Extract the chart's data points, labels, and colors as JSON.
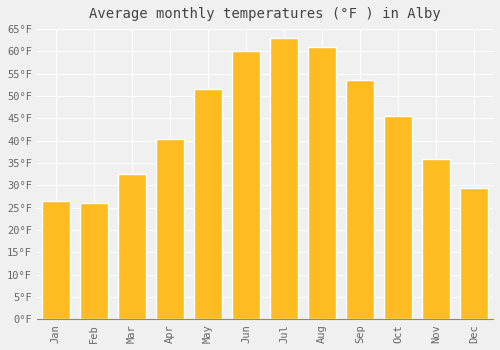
{
  "title": "Average monthly temperatures (°F ) in Alby",
  "months": [
    "Jan",
    "Feb",
    "Mar",
    "Apr",
    "May",
    "Jun",
    "Jul",
    "Aug",
    "Sep",
    "Oct",
    "Nov",
    "Dec"
  ],
  "values": [
    26.5,
    26.0,
    32.5,
    40.5,
    51.5,
    60.0,
    63.0,
    61.0,
    53.5,
    45.5,
    36.0,
    29.5
  ],
  "bar_color": "#FFBB22",
  "bar_edge_color": "#FFFFFF",
  "background_color": "#F0F0F0",
  "plot_bg_color": "#F0F0F0",
  "grid_color": "#FFFFFF",
  "ylim": [
    0,
    65
  ],
  "yticks": [
    0,
    5,
    10,
    15,
    20,
    25,
    30,
    35,
    40,
    45,
    50,
    55,
    60,
    65
  ],
  "tick_label_color": "#666666",
  "title_color": "#444444",
  "title_fontsize": 10,
  "font_family": "monospace",
  "tick_fontsize": 7.5
}
